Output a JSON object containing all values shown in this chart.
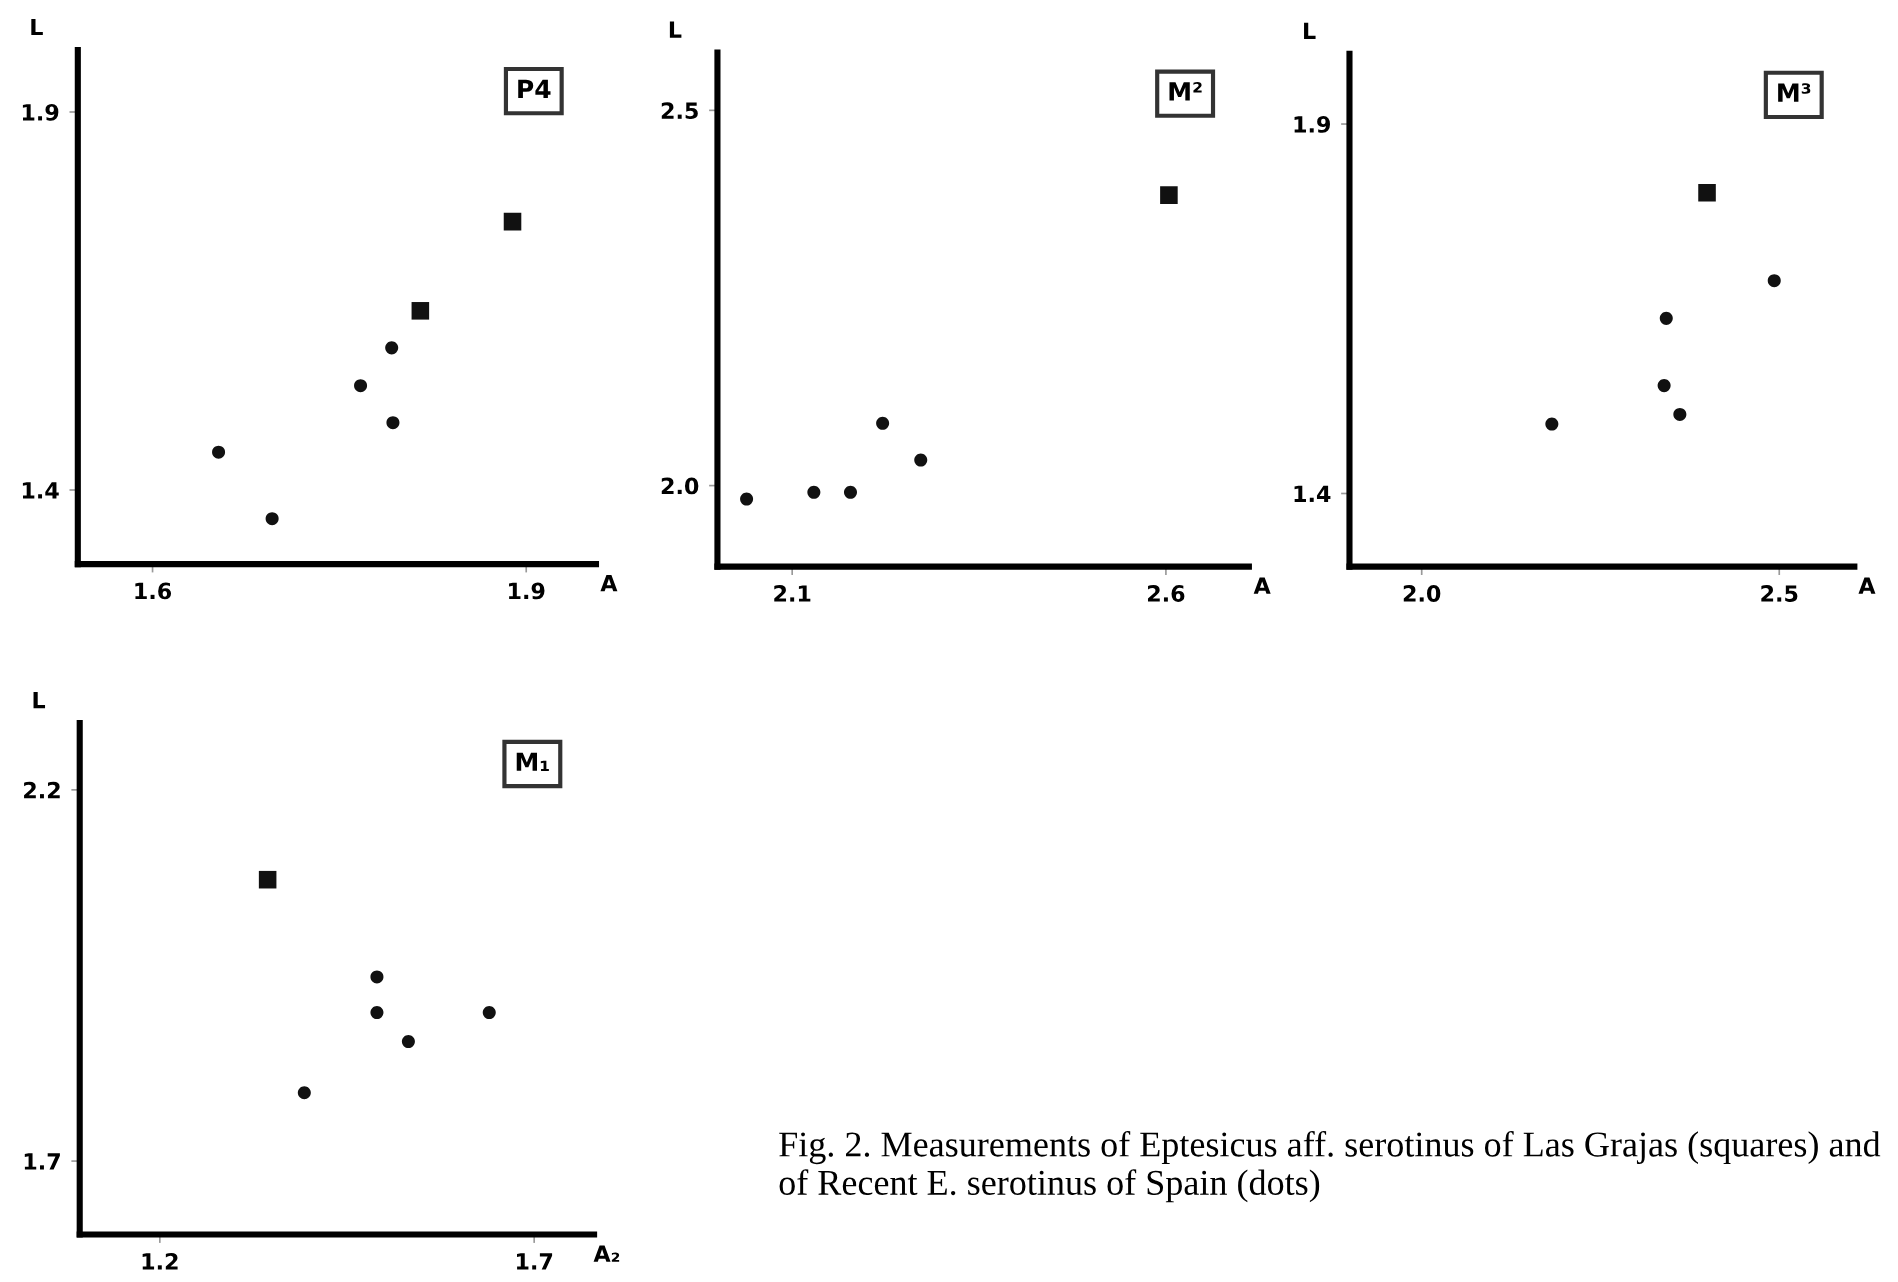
{
  "chart_data": [
    {
      "type": "scatter",
      "title": "P4",
      "xlabel": "A",
      "ylabel": "L",
      "xlim": [
        1.54,
        1.956
      ],
      "ylim": [
        1.302,
        1.982
      ],
      "xticks": [
        1.6,
        1.9
      ],
      "yticks": [
        1.4,
        1.9
      ],
      "grid": false,
      "legend": false,
      "series": [
        {
          "color": "#111111",
          "marker": "square",
          "x": [
            1.889,
            1.815
          ],
          "values": [
            1.755,
            1.637
          ]
        },
        {
          "color": "#111111",
          "marker": "circle",
          "x": [
            1.792,
            1.767,
            1.793,
            1.653,
            1.696
          ],
          "values": [
            1.588,
            1.538,
            1.489,
            1.45,
            1.362
          ]
        }
      ]
    },
    {
      "type": "scatter",
      "title": "M²",
      "xlabel": "A",
      "ylabel": "L",
      "xlim": [
        2.0,
        2.711
      ],
      "ylim": [
        1.892,
        2.577
      ],
      "xticks": [
        2.1,
        2.6
      ],
      "yticks": [
        {
          "value": 2.0,
          "label": "2.0"
        },
        2.5
      ],
      "grid": false,
      "legend": false,
      "series": [
        {
          "color": "#111111",
          "marker": "square",
          "x": [
            2.604
          ],
          "values": [
            2.387
          ]
        },
        {
          "color": "#111111",
          "marker": "circle",
          "x": [
            2.039,
            2.129,
            2.178,
            2.221,
            2.272
          ],
          "values": [
            1.982,
            1.991,
            1.991,
            2.083,
            2.034
          ]
        }
      ]
    },
    {
      "type": "scatter",
      "title": "M³",
      "xlabel": "A",
      "ylabel": "L",
      "xlim": [
        1.899,
        2.605
      ],
      "ylim": [
        1.301,
        1.995
      ],
      "xticks": [
        {
          "value": 2.0,
          "label": "2.0"
        },
        2.5
      ],
      "yticks": [
        1.4,
        1.9
      ],
      "grid": false,
      "legend": false,
      "series": [
        {
          "color": "#111111",
          "marker": "square",
          "x": [
            2.399
          ],
          "values": [
            1.807
          ]
        },
        {
          "color": "#111111",
          "marker": "circle",
          "x": [
            2.493,
            2.342,
            2.339,
            2.361,
            2.182
          ],
          "values": [
            1.688,
            1.637,
            1.546,
            1.507,
            1.494
          ]
        }
      ]
    },
    {
      "type": "scatter",
      "title": "M₁",
      "xlabel": "A₂",
      "ylabel": "L",
      "xlim": [
        1.093,
        1.78
      ],
      "ylim": [
        1.601,
        2.29
      ],
      "xticks": [
        1.2,
        1.7
      ],
      "yticks": [
        1.7,
        2.2
      ],
      "grid": false,
      "legend": false,
      "annotations": [
        "Fig. 2. Measurements of Eptesicus aff. serotinus of Las Grajas (squares) and of Recent E. serotinus of Spain (dots)"
      ],
      "series": [
        {
          "color": "#111111",
          "marker": "square",
          "x": [
            1.344
          ],
          "values": [
            2.079
          ]
        },
        {
          "color": "#111111",
          "marker": "circle",
          "x": [
            1.49,
            1.49,
            1.532,
            1.64,
            1.393
          ],
          "values": [
            1.948,
            1.9,
            1.861,
            1.9,
            1.792
          ]
        }
      ]
    }
  ]
}
